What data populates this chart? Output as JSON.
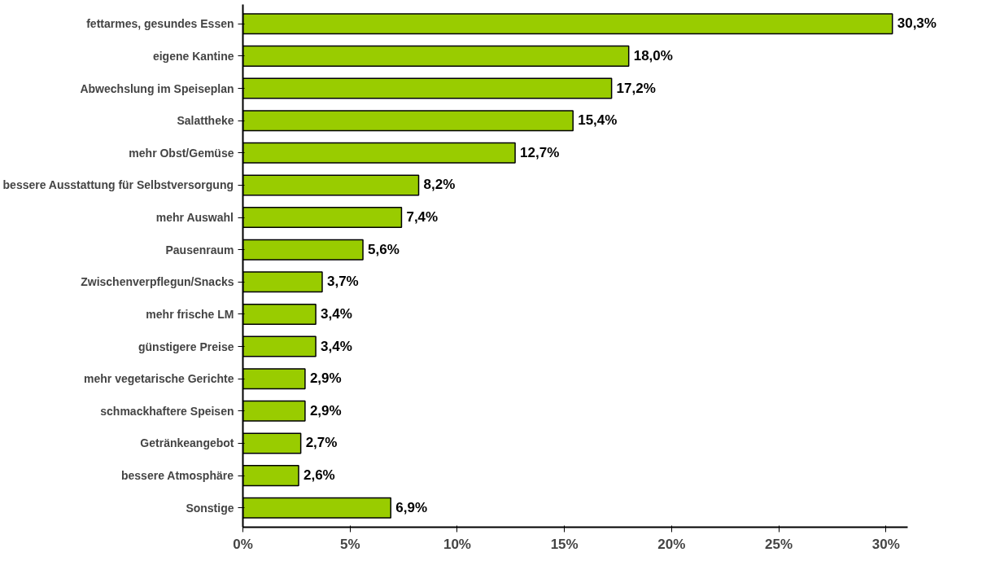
{
  "chart_data": {
    "type": "bar",
    "orientation": "horizontal",
    "categories": [
      "fettarmes, gesundes Essen",
      "eigene Kantine",
      "Abwechslung im Speiseplan",
      "Salattheke",
      "mehr Obst/Gemüse",
      "bessere Ausstattung für Selbstversorgung",
      "mehr Auswahl",
      "Pausenraum",
      "Zwischenverpflegun/Snacks",
      "mehr frische LM",
      "günstigere Preise",
      "mehr vegetarische Gerichte",
      "schmackhaftere Speisen",
      "Getränkeangebot",
      "bessere Atmosphäre",
      "Sonstige"
    ],
    "values": [
      30.3,
      18.0,
      17.2,
      15.4,
      12.7,
      8.2,
      7.4,
      5.6,
      3.7,
      3.4,
      3.4,
      2.9,
      2.9,
      2.7,
      2.6,
      6.9
    ],
    "value_labels": [
      "30,3%",
      "18,0%",
      "17,2%",
      "15,4%",
      "12,7%",
      "8,2%",
      "7,4%",
      "5,6%",
      "3,7%",
      "3,4%",
      "3,4%",
      "2,9%",
      "2,9%",
      "2,7%",
      "2,6%",
      "6,9%"
    ],
    "color": "#99cc00",
    "xlim": [
      0,
      31
    ],
    "xticks": [
      {
        "value": 0,
        "label": "0%"
      },
      {
        "value": 5,
        "label": "5%"
      },
      {
        "value": 10,
        "label": "10%"
      },
      {
        "value": 15,
        "label": "15%"
      },
      {
        "value": 20,
        "label": "20%"
      },
      {
        "value": 25,
        "label": "25%"
      },
      {
        "value": 30,
        "label": "30%"
      }
    ]
  }
}
